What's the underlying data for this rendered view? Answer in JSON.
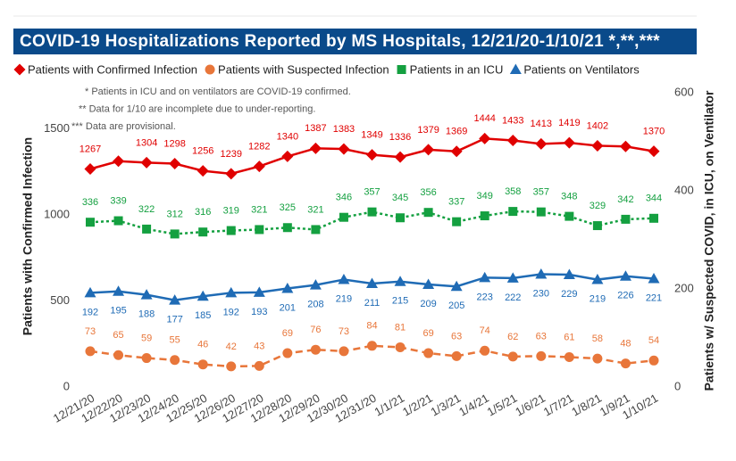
{
  "chart_data": {
    "type": "line",
    "title": "COVID-19 Hospitalizations Reported by MS Hospitals, 12/21/20-1/10/21 *,**,***",
    "notes": [
      "* Patients in ICU and on ventilators are COVID-19 confirmed.",
      "** Data for 1/10 are incomplete due to under-reporting.",
      "*** Data are provisional."
    ],
    "ylabel": "Patients with Confirmed Infection",
    "y2label": "Patients w/ Suspected COVID, in ICU, on Ventilator",
    "categories": [
      "12/21/20",
      "12/22/20",
      "12/23/20",
      "12/24/20",
      "12/25/20",
      "12/26/20",
      "12/27/20",
      "12/28/20",
      "12/29/20",
      "12/30/20",
      "12/31/20",
      "1/1/21",
      "1/2/21",
      "1/3/21",
      "1/4/21",
      "1/5/21",
      "1/6/21",
      "1/7/21",
      "1/8/21",
      "1/9/21",
      "1/10/21"
    ],
    "ylim": [
      0,
      1710
    ],
    "yticks": [
      0,
      500,
      1000,
      1500
    ],
    "y2lim": [
      0,
      600
    ],
    "y2ticks": [
      0,
      200,
      400,
      600
    ],
    "series": [
      {
        "name": "Patients with Confirmed Infection",
        "color": "#e00000",
        "marker": "diamond",
        "dash": "solid",
        "label_position": "above",
        "values": [
          1267,
          1312,
          1304,
          1298,
          1256,
          1239,
          1282,
          1340,
          1387,
          1383,
          1349,
          1336,
          1379,
          1369,
          1444,
          1433,
          1413,
          1419,
          1402,
          1398,
          1370
        ],
        "value_labels": [
          "1267",
          null,
          "1304",
          "1298",
          "1256",
          "1239",
          "1282",
          "1340",
          "1387",
          "1383",
          "1349",
          "1336",
          "1379",
          "1369",
          "1444",
          "1433",
          "1413",
          "1419",
          "1402",
          null,
          "1370"
        ]
      },
      {
        "name": "Patients with Suspected Infection",
        "color": "#e8763a",
        "marker": "circle",
        "dash": "dashed",
        "label_position": "above",
        "axis": "y2",
        "values": [
          73,
          65,
          59,
          55,
          46,
          42,
          43,
          69,
          76,
          73,
          84,
          81,
          69,
          63,
          74,
          62,
          63,
          61,
          58,
          48,
          54
        ]
      },
      {
        "name": "Patients in an ICU",
        "color": "#14a040",
        "marker": "square",
        "dash": "dotted",
        "label_position": "above",
        "axis": "y2",
        "values": [
          336,
          339,
          322,
          312,
          316,
          319,
          321,
          325,
          321,
          346,
          357,
          345,
          356,
          337,
          349,
          358,
          357,
          348,
          329,
          342,
          344
        ]
      },
      {
        "name": "Patients on Ventilators",
        "color": "#1f6bb5",
        "marker": "triangle",
        "dash": "solid",
        "label_position": "below",
        "axis": "y2",
        "values": [
          192,
          195,
          188,
          177,
          185,
          192,
          193,
          201,
          208,
          219,
          211,
          215,
          209,
          205,
          223,
          222,
          230,
          229,
          219,
          226,
          221
        ]
      }
    ]
  }
}
